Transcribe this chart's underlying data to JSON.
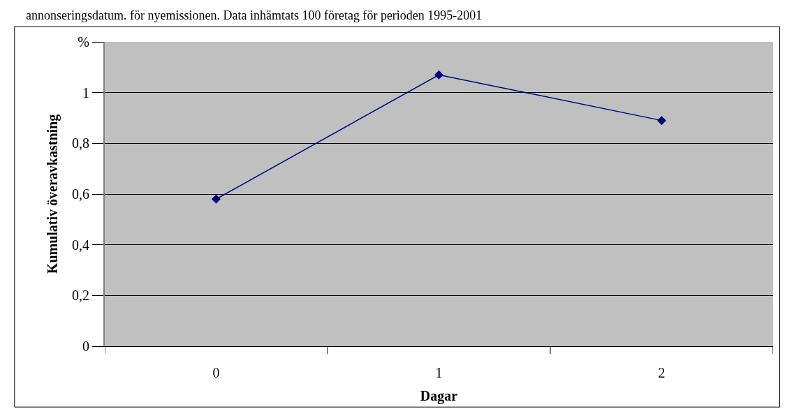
{
  "chart_data": {
    "type": "line",
    "annotations": [
      "annonseringsdatum. för nyemissionen. Data inhämtats 100 företag för perioden 1995-2001"
    ],
    "xlabel": "Dagar",
    "ylabel": "Kumulativ överavkastning",
    "categories": [
      "0",
      "1",
      "2"
    ],
    "series": [
      {
        "color": "#000080",
        "values": [
          0.58,
          1.07,
          0.89
        ]
      }
    ],
    "ylim": [
      0,
      1.2
    ],
    "yticks": [
      0,
      {
        "value": 0.2,
        "label": "0,2"
      },
      {
        "value": 0.4,
        "label": "0,4"
      },
      {
        "value": 0.6,
        "label": "0,6"
      },
      {
        "value": 0.8,
        "label": "0,8"
      },
      1,
      {
        "value": 1.2,
        "label": "%"
      }
    ],
    "grid": "y",
    "marker": "diamond",
    "line_style": "solid"
  }
}
